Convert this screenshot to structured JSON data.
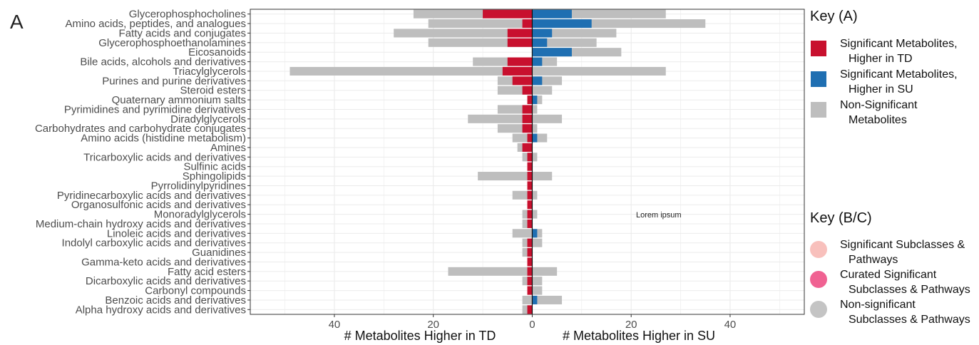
{
  "panel_label": "A",
  "annotation": "Lorem ipsum",
  "colors": {
    "sig_td": "#C8102E",
    "sig_su": "#1F6FB2",
    "nonsig": "#BEBEBE",
    "sub_sig": "#F8C0BC",
    "curated": "#F06292",
    "nonsig_sub": "#C4C4C4",
    "grid": "#EBEBEB"
  },
  "legend_a": {
    "title": "Key (A)",
    "items": [
      {
        "lines": [
          "Significant Metabolites,",
          "Higher in TD"
        ],
        "color": "#C8102E",
        "shape": "square"
      },
      {
        "lines": [
          "Significant Metabolites,",
          "Higher in SU"
        ],
        "color": "#1F6FB2",
        "shape": "square"
      },
      {
        "lines": [
          "Non-Significant",
          "Metabolites"
        ],
        "color": "#BEBEBE",
        "shape": "square"
      }
    ]
  },
  "legend_bc": {
    "title": "Key (B/C)",
    "items": [
      {
        "lines": [
          "Significant Subclasses &",
          "Pathways"
        ],
        "color": "#F8C0BC",
        "shape": "circle"
      },
      {
        "lines": [
          "Curated Significant",
          "Subclasses & Pathways"
        ],
        "color": "#F06292",
        "shape": "circle"
      },
      {
        "lines": [
          "Non-significant",
          "Subclasses & Pathways"
        ],
        "color": "#C4C4C4",
        "shape": "circle"
      }
    ]
  },
  "chart_data": {
    "type": "bar",
    "orientation": "horizontal-diverging",
    "xlabel_left": "# Metabolites Higher in TD",
    "xlabel_right": "# Metabolites Higher in SU",
    "xlim": [
      -57,
      55
    ],
    "x_ticks": [
      -40,
      -20,
      0,
      20,
      40
    ],
    "x_tick_labels": [
      "40",
      "20",
      "0",
      "20",
      "40"
    ],
    "grid": true,
    "categories": [
      "Glycerophosphocholines",
      "Amino acids, peptides, and analogues",
      "Fatty acids and conjugates",
      "Glycerophosphoethanolamines",
      "Eicosanoids",
      "Bile acids, alcohols and derivatives",
      "Triacylglycerols",
      "Purines and purine derivatives",
      "Steroid esters",
      "Quaternary ammonium salts",
      "Pyrimidines and pyrimidine derivatives",
      "Diradylglycerols",
      "Carbohydrates and carbohydrate conjugates",
      "Amino acids (histidine metabolism)",
      "Amines",
      "Tricarboxylic acids and derivatives",
      "Sulfinic acids",
      "Sphingolipids",
      "Pyrrolidinylpyridines",
      "Pyridinecarboxylic acids and derivatives",
      "Organosulfonic acids and derivatives",
      "Monoradylglycerols",
      "Medium-chain hydroxy acids and derivatives",
      "Linoleic acids and derivatives",
      "Indolyl carboxylic acids and derivatives",
      "Guanidines",
      "Gamma-keto acids and derivatives",
      "Fatty acid esters",
      "Dicarboxylic acids and derivatives",
      "Carbonyl compounds",
      "Benzoic acids and derivatives",
      "Alpha hydroxy acids and derivatives"
    ],
    "series": [
      {
        "name": "Non-Significant Metabolites (TD side)",
        "side": "TD",
        "color": "#BEBEBE",
        "values": [
          24,
          21,
          28,
          21,
          0,
          12,
          49,
          7,
          7,
          0,
          7,
          13,
          7,
          4,
          3,
          2,
          0,
          11,
          0,
          4,
          0,
          2,
          2,
          4,
          2,
          2,
          0,
          17,
          2,
          1,
          2,
          2
        ]
      },
      {
        "name": "Significant Metabolites, Higher in TD",
        "side": "TD",
        "color": "#C8102E",
        "values": [
          10,
          2,
          5,
          5,
          0,
          5,
          6,
          4,
          2,
          1,
          2,
          2,
          2,
          1,
          2,
          1,
          1,
          1,
          1,
          1,
          1,
          1,
          1,
          0,
          1,
          1,
          1,
          1,
          1,
          1,
          0,
          1
        ]
      },
      {
        "name": "Non-Significant Metabolites (SU side)",
        "side": "SU",
        "color": "#BEBEBE",
        "values": [
          27,
          35,
          17,
          13,
          18,
          5,
          27,
          6,
          4,
          2,
          1,
          6,
          1,
          3,
          0,
          1,
          0,
          4,
          0,
          1,
          0,
          1,
          0,
          2,
          2,
          0,
          0,
          5,
          2,
          2,
          6,
          0
        ]
      },
      {
        "name": "Significant Metabolites, Higher in SU",
        "side": "SU",
        "color": "#1F6FB2",
        "values": [
          8,
          12,
          4,
          3,
          8,
          2,
          0,
          2,
          0,
          1,
          0,
          0,
          0,
          1,
          0,
          0,
          0,
          0,
          0,
          0,
          0,
          0,
          0,
          1,
          0,
          0,
          0,
          0,
          0,
          0,
          1,
          0
        ]
      }
    ]
  }
}
